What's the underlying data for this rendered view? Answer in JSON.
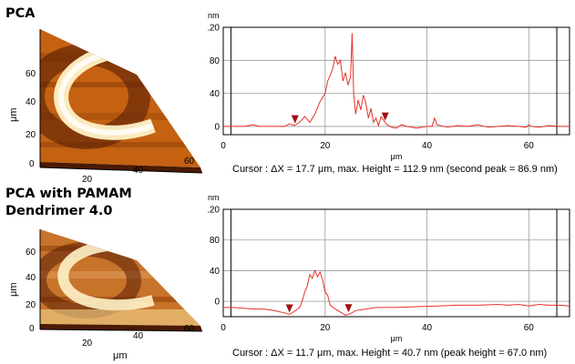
{
  "panels": [
    {
      "title_lines": [
        "PCA"
      ],
      "afm": {
        "y_label": "μm",
        "x_label": "μm",
        "y_ticks": [
          "0",
          "20",
          "40",
          "60"
        ],
        "x_ticks": [
          "20",
          "40",
          "60"
        ]
      },
      "caption": "Cursor : ΔX = 17.7 μm, max. Height = 112.9 nm (second peak = 86.9 nm)"
    },
    {
      "title_lines": [
        "PCA  with PAMAM",
        "Dendrimer 4.0"
      ],
      "afm": {
        "y_label": "μm",
        "x_label": "μm",
        "y_ticks": [
          "0",
          "20",
          "40",
          "60"
        ],
        "x_ticks": [
          "20",
          "40",
          "60"
        ]
      },
      "caption": "Cursor : ΔX = 11.7 μm, max. Height = 40.7 nm (peak height = 67.0 nm)"
    }
  ],
  "colors": {
    "trace": "#e8302a",
    "cursor_marker": "#a01010",
    "afm_dark": "#5a1e05",
    "afm_mid": "#c46212",
    "afm_light": "#fff2c8"
  },
  "chart_data": [
    {
      "type": "line",
      "ylabel": "nm",
      "xlabel": "μm",
      "y_ticks": [
        0,
        40,
        80,
        120
      ],
      "x_ticks": [
        0,
        20,
        40,
        60
      ],
      "ylim": [
        -10,
        120
      ],
      "xlim": [
        0,
        68
      ],
      "grid": true,
      "cursor_x": [
        14.1,
        31.8
      ],
      "series": [
        {
          "x": [
            0,
            2,
            4,
            6,
            7,
            8,
            10,
            12,
            13,
            14,
            15,
            16,
            17,
            18,
            19,
            19.5,
            20,
            20.5,
            21,
            21.5,
            22,
            22.5,
            23,
            23.5,
            24,
            24.5,
            25,
            25.3,
            25.6,
            26,
            26.5,
            27,
            27.5,
            28,
            28.5,
            29,
            29.5,
            30,
            30.5,
            31,
            32,
            33,
            34,
            35,
            36,
            38,
            40,
            41,
            41.5,
            42,
            44,
            46,
            48,
            50,
            52,
            54,
            56,
            58,
            59.5,
            60,
            60.5,
            62,
            64,
            66,
            68
          ],
          "y": [
            0,
            0,
            0,
            2,
            0,
            0,
            0,
            0,
            3,
            1,
            5,
            12,
            5,
            15,
            30,
            35,
            40,
            55,
            62,
            70,
            85,
            75,
            80,
            55,
            65,
            50,
            60,
            113,
            40,
            15,
            32,
            20,
            38,
            28,
            10,
            22,
            5,
            10,
            1,
            12,
            3,
            -1,
            -2,
            2,
            0,
            -2,
            0,
            0,
            10,
            2,
            -1,
            1,
            0,
            2,
            -1,
            0,
            1,
            0,
            -1,
            2,
            0,
            -1,
            1,
            0,
            0
          ]
        }
      ]
    },
    {
      "type": "line",
      "ylabel": "nm",
      "xlabel": "μm",
      "y_ticks": [
        0,
        40,
        80,
        120
      ],
      "x_ticks": [
        0,
        20,
        40,
        60
      ],
      "ylim": [
        -20,
        120
      ],
      "xlim": [
        0,
        68
      ],
      "grid": true,
      "cursor_x": [
        13.0,
        24.6
      ],
      "series": [
        {
          "x": [
            0,
            2,
            4,
            6,
            8,
            10,
            12,
            13,
            14,
            15,
            15.5,
            16,
            16.5,
            17,
            17.5,
            18,
            18.5,
            19,
            19.5,
            20,
            20.5,
            21,
            22,
            23,
            24,
            25,
            26,
            28,
            30,
            34,
            38,
            42,
            46,
            50,
            54,
            56,
            58,
            60,
            62,
            64,
            66,
            68
          ],
          "y": [
            -8,
            -8,
            -9,
            -10,
            -10,
            -12,
            -15,
            -17,
            -13,
            -8,
            0,
            12,
            20,
            35,
            30,
            40,
            32,
            38,
            28,
            12,
            8,
            -5,
            -10,
            -14,
            -18,
            -16,
            -12,
            -10,
            -8,
            -8,
            -7,
            -6,
            -5,
            -5,
            -4,
            -5,
            -4,
            -6,
            -4,
            -5,
            -5,
            -6
          ]
        }
      ]
    }
  ]
}
